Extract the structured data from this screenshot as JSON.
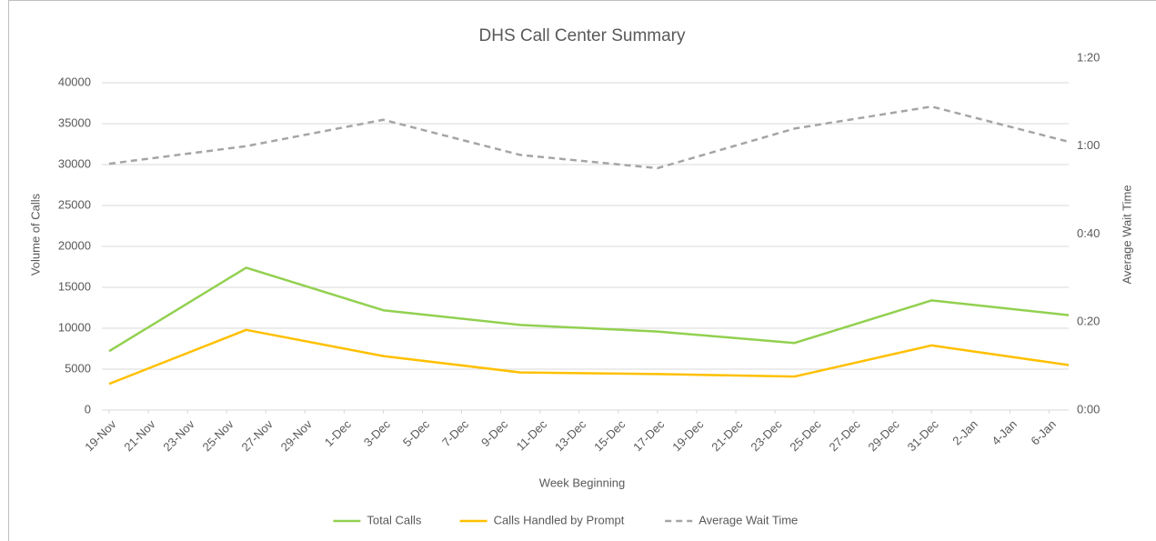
{
  "chart_data": {
    "type": "line",
    "title": "DHS Call Center Summary",
    "x_label": "Week Beginning",
    "y_label": "Volume of Calls",
    "y2_label": "Average Wait Time",
    "x": [
      "19-Nov",
      "26-Nov",
      "3-Dec",
      "10-Dec",
      "17-Dec",
      "24-Dec",
      "31-Dec",
      "7-Jan"
    ],
    "xlim": [
      "19-Nov",
      "7-Jan"
    ],
    "xticks": [
      "19-Nov",
      "21-Nov",
      "23-Nov",
      "25-Nov",
      "27-Nov",
      "29-Nov",
      "1-Dec",
      "3-Dec",
      "5-Dec",
      "7-Dec",
      "9-Dec",
      "11-Dec",
      "13-Dec",
      "15-Dec",
      "17-Dec",
      "19-Dec",
      "21-Dec",
      "23-Dec",
      "25-Dec",
      "27-Dec",
      "29-Dec",
      "31-Dec",
      "2-Jan",
      "4-Jan",
      "6-Jan"
    ],
    "ylim": [
      0,
      43000
    ],
    "yticks": [
      0,
      5000,
      10000,
      15000,
      20000,
      25000,
      30000,
      35000,
      40000
    ],
    "y2lim": [
      0,
      80
    ],
    "y2ticks": [
      {
        "value": 0,
        "label": "0:00"
      },
      {
        "value": 20,
        "label": "0:20"
      },
      {
        "value": 40,
        "label": "0:40"
      },
      {
        "value": 60,
        "label": "1:00"
      },
      {
        "value": 80,
        "label": "1:20"
      }
    ],
    "grid": true,
    "legend": "bottom",
    "series": [
      {
        "name": "Total Calls",
        "color": "#92d050",
        "values": [
          7200,
          17400,
          12200,
          10400,
          9600,
          8200,
          13400,
          11600
        ]
      },
      {
        "name": "Calls Handled by Prompt",
        "color": "#ffc000",
        "values": [
          3200,
          9800,
          6600,
          4600,
          4400,
          4100,
          7900,
          5500
        ]
      },
      {
        "name": "Average Wait Time",
        "color": "#a5a5a5",
        "dashed": true,
        "axis": "y2",
        "values": [
          56,
          60,
          66,
          58,
          55,
          64,
          69,
          61
        ]
      }
    ]
  }
}
